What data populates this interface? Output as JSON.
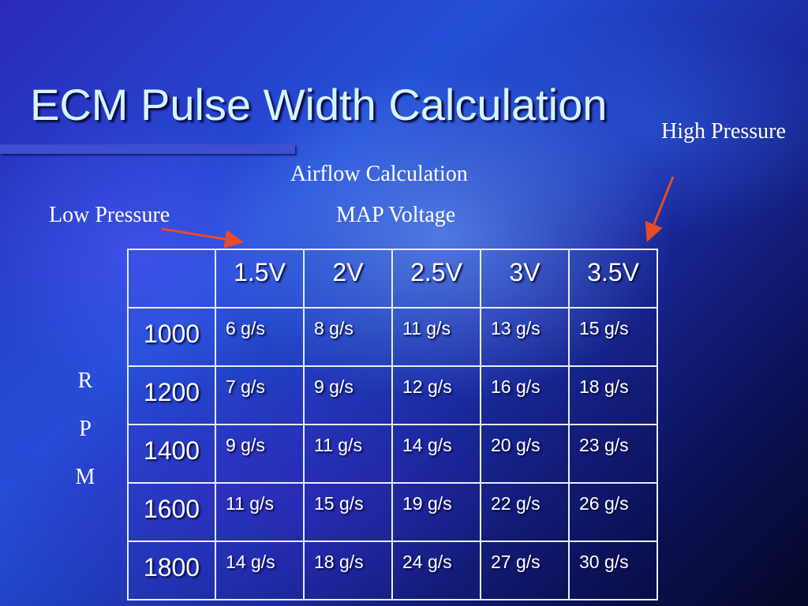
{
  "slide": {
    "title": "ECM Pulse Width Calculation",
    "labels": {
      "high_pressure": "High Pressure",
      "airflow_calculation": "Airflow Calculation",
      "map_voltage": "MAP Voltage",
      "low_pressure": "Low Pressure",
      "rpm_letters": [
        "R",
        "P",
        "M"
      ]
    },
    "arrow_color": "#e84a2a",
    "table": {
      "corner": "",
      "columns": [
        "1.5V",
        "2V",
        "2.5V",
        "3V",
        "3.5V"
      ],
      "rows": [
        {
          "rpm": "1000",
          "values": [
            "6 g/s",
            "8 g/s",
            "11 g/s",
            "13 g/s",
            "15 g/s"
          ]
        },
        {
          "rpm": "1200",
          "values": [
            "7 g/s",
            "9 g/s",
            "12 g/s",
            "16 g/s",
            "18 g/s"
          ]
        },
        {
          "rpm": "1400",
          "values": [
            "9 g/s",
            "11 g/s",
            "14 g/s",
            "20 g/s",
            "23 g/s"
          ]
        },
        {
          "rpm": "1600",
          "values": [
            "11 g/s",
            "15 g/s",
            "19 g/s",
            "22 g/s",
            "26 g/s"
          ]
        },
        {
          "rpm": "1800",
          "values": [
            "14 g/s",
            "18 g/s",
            "24 g/s",
            "27 g/s",
            "30 g/s"
          ]
        }
      ]
    }
  }
}
